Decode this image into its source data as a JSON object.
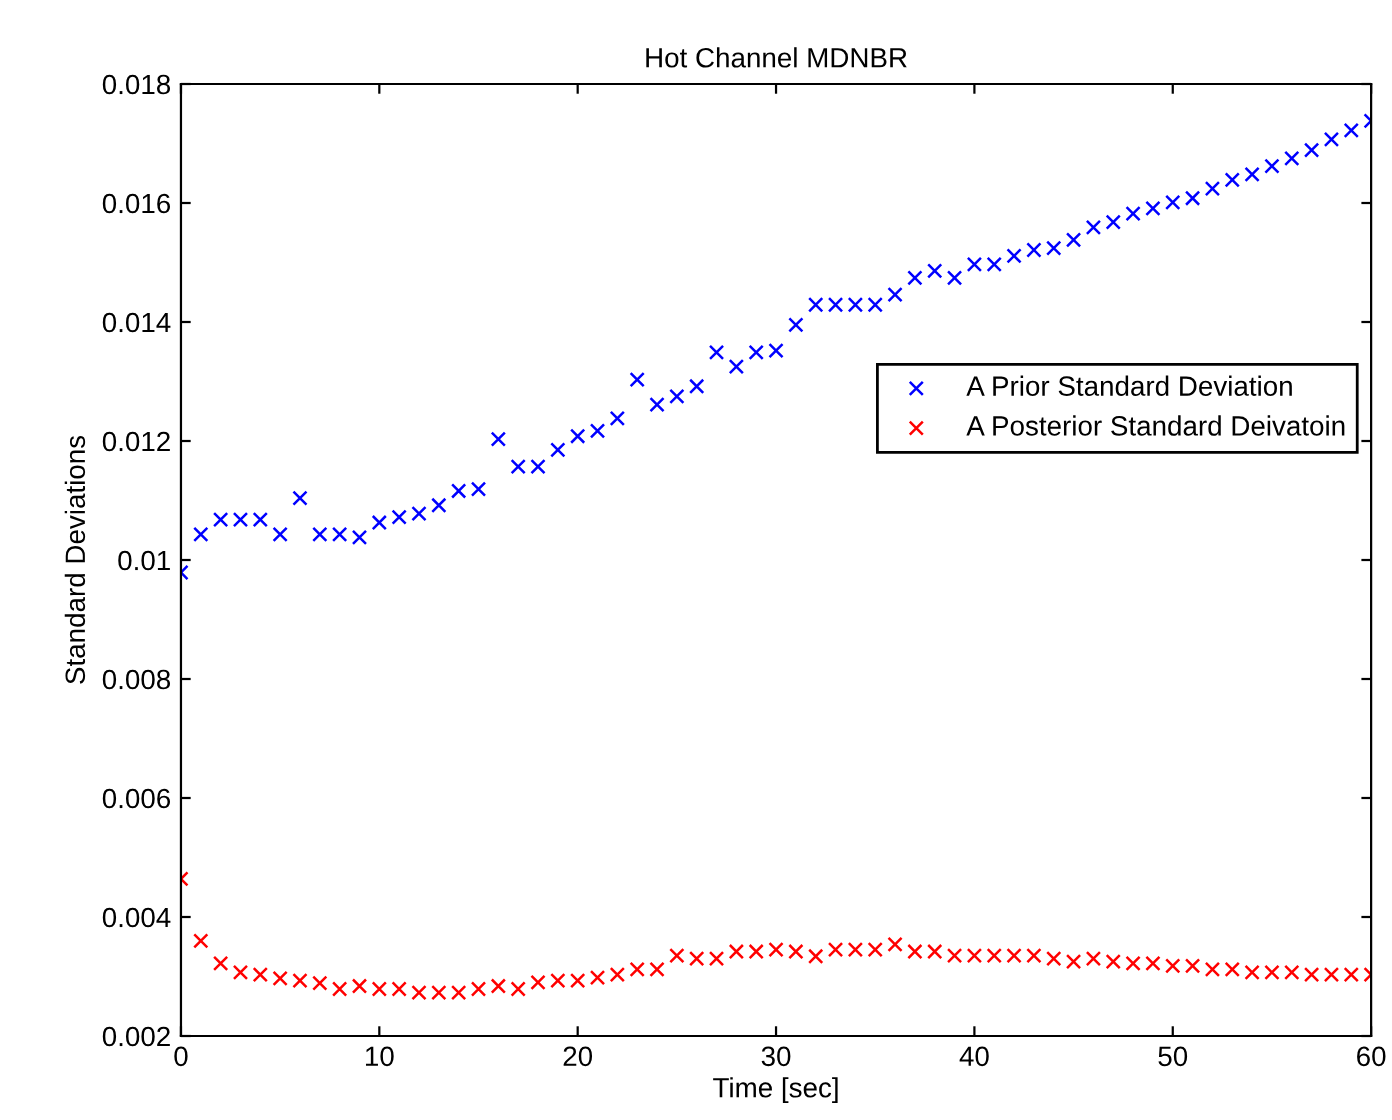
{
  "chart_data": {
    "type": "scatter",
    "title": "Hot Channel MDNBR",
    "xlabel": "Time [sec]",
    "ylabel": "Standard Deviations",
    "x": [
      0,
      1,
      2,
      3,
      4,
      5,
      6,
      7,
      8,
      9,
      10,
      11,
      12,
      13,
      14,
      15,
      16,
      17,
      18,
      19,
      20,
      21,
      22,
      23,
      24,
      25,
      26,
      27,
      28,
      29,
      30,
      31,
      32,
      33,
      34,
      35,
      36,
      37,
      38,
      39,
      40,
      41,
      42,
      43,
      44,
      45,
      46,
      47,
      48,
      49,
      50,
      51,
      52,
      53,
      54,
      55,
      56,
      57,
      58,
      59,
      60
    ],
    "series": [
      {
        "name": "A Prior Standard Deviation",
        "color": "#0000ff",
        "values": [
          0.00979,
          0.01043,
          0.01068,
          0.01068,
          0.01068,
          0.01043,
          0.01104,
          0.01043,
          0.01043,
          0.01038,
          0.01063,
          0.01072,
          0.01078,
          0.01092,
          0.01116,
          0.01119,
          0.01203,
          0.01157,
          0.01157,
          0.01185,
          0.01208,
          0.01217,
          0.01238,
          0.01303,
          0.01261,
          0.01275,
          0.01292,
          0.01349,
          0.01325,
          0.01349,
          0.01352,
          0.01395,
          0.01429,
          0.01429,
          0.01429,
          0.01429,
          0.01446,
          0.01474,
          0.01486,
          0.01474,
          0.01497,
          0.01497,
          0.01511,
          0.01521,
          0.01524,
          0.01538,
          0.01559,
          0.01568,
          0.01582,
          0.01591,
          0.01601,
          0.01608,
          0.01624,
          0.01639,
          0.01648,
          0.01662,
          0.01675,
          0.01689,
          0.01707,
          0.01722,
          0.01738
        ]
      },
      {
        "name": "A Posterior Standard Deivatoin",
        "color": "#ff0000",
        "values": [
          0.00464,
          0.0036,
          0.00322,
          0.00307,
          0.00303,
          0.00297,
          0.00293,
          0.00289,
          0.00279,
          0.00284,
          0.00279,
          0.00279,
          0.00273,
          0.00273,
          0.00273,
          0.00279,
          0.00284,
          0.00279,
          0.0029,
          0.00293,
          0.00293,
          0.00298,
          0.00303,
          0.00312,
          0.00312,
          0.00335,
          0.0033,
          0.0033,
          0.00342,
          0.00342,
          0.00345,
          0.00342,
          0.00334,
          0.00345,
          0.00345,
          0.00345,
          0.00354,
          0.00342,
          0.00342,
          0.00335,
          0.00335,
          0.00335,
          0.00335,
          0.00335,
          0.0033,
          0.00325,
          0.0033,
          0.00325,
          0.00322,
          0.00322,
          0.00318,
          0.00318,
          0.00312,
          0.00312,
          0.00307,
          0.00307,
          0.00307,
          0.00303,
          0.00303,
          0.00303,
          0.00303
        ]
      }
    ],
    "xlim": [
      0,
      60
    ],
    "xticks": [
      0,
      10,
      20,
      30,
      40,
      50,
      60
    ],
    "ylim": [
      0.002,
      0.018
    ],
    "yticks": [
      0.002,
      0.004,
      0.006,
      0.008,
      0.01,
      0.012,
      0.014,
      0.016,
      0.018
    ],
    "marker": "cross",
    "grid": false,
    "legend": "right"
  }
}
